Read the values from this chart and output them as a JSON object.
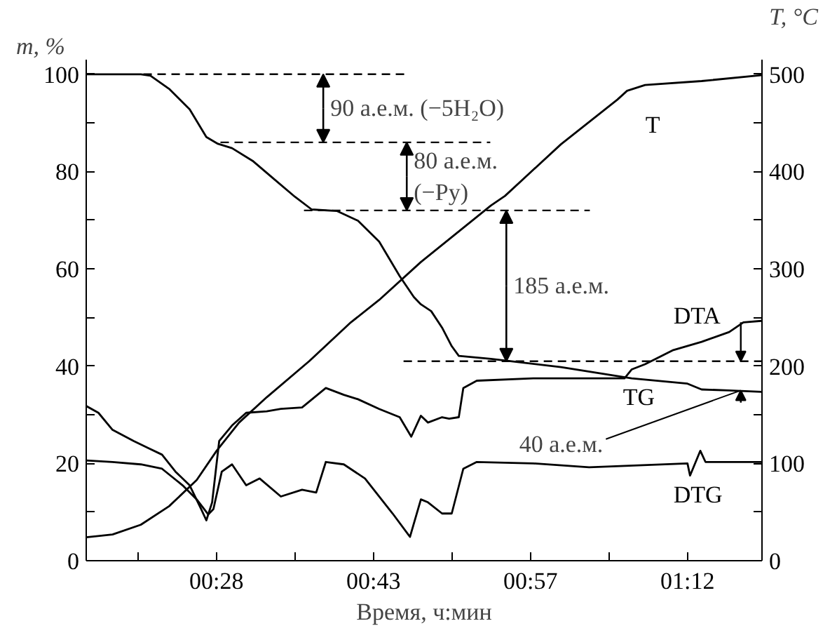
{
  "chart_data": {
    "type": "line",
    "ylabel": "m, %",
    "y2label": "T, °C",
    "xlabel": "Время, ч:мин",
    "xlim": [
      0.264,
      1.316
    ],
    "ylim": [
      0,
      103
    ],
    "y2lim": [
      0,
      515
    ],
    "xticks": [
      {
        "value": 0.3444,
        "label": null
      },
      {
        "value": 0.4667,
        "label": "00:28"
      },
      {
        "value": 0.5889,
        "label": null
      },
      {
        "value": 0.7111,
        "label": "00:43"
      },
      {
        "value": 0.8333,
        "label": null
      },
      {
        "value": 0.9556,
        "label": "00:57"
      },
      {
        "value": 1.0778,
        "label": null
      },
      {
        "value": 1.2,
        "label": "01:12"
      }
    ],
    "yticks": [
      0,
      {
        "value": 10,
        "label": null
      },
      20,
      {
        "value": 30,
        "label": null
      },
      40,
      {
        "value": 50,
        "label": null
      },
      60,
      {
        "value": 70,
        "label": null
      },
      80,
      {
        "value": 90,
        "label": null
      },
      100
    ],
    "y2ticks": [
      0,
      {
        "value": 50,
        "label": null
      },
      100,
      {
        "value": 150,
        "label": null
      },
      200,
      {
        "value": 250,
        "label": null
      },
      300,
      {
        "value": 350,
        "label": null
      },
      400,
      {
        "value": 450,
        "label": null
      },
      500
    ],
    "grid": false,
    "line_style": "solid",
    "series": [
      {
        "name": "TG",
        "color": "#000000",
        "x": [
          0.264,
          0.349,
          0.364,
          0.393,
          0.425,
          0.451,
          0.469,
          0.491,
          0.523,
          0.556,
          0.589,
          0.615,
          0.654,
          0.687,
          0.72,
          0.752,
          0.774,
          0.785,
          0.801,
          0.818,
          0.833,
          0.844,
          0.894,
          1.003,
          1.113,
          1.2,
          1.222,
          1.265,
          1.315
        ],
        "values": [
          100,
          100,
          99.7,
          97,
          92.8,
          87.1,
          85.7,
          84.8,
          82.2,
          78.5,
          74.8,
          72.2,
          71.9,
          69.9,
          65.6,
          58.5,
          54.2,
          52.7,
          51.3,
          47.9,
          44.1,
          42.1,
          41.5,
          39.8,
          37.5,
          36.4,
          35.2,
          35,
          34.7
        ]
      },
      {
        "name": "T",
        "color": "#000000",
        "axis": "y2",
        "x": [
          0.264,
          0.305,
          0.349,
          0.393,
          0.436,
          0.467,
          0.502,
          0.545,
          0.611,
          0.676,
          0.72,
          0.785,
          0.894,
          0.916,
          1.003,
          1.091,
          1.106,
          1.134,
          1.222,
          1.315
        ],
        "values": [
          24,
          27,
          37,
          56,
          83,
          113,
          142,
          168,
          205,
          245,
          268,
          307,
          365,
          375,
          428,
          474,
          483,
          489,
          493,
          499
        ]
      },
      {
        "name": "DTA",
        "color": "#000000",
        "x": [
          0.264,
          0.283,
          0.305,
          0.338,
          0.36,
          0.382,
          0.403,
          0.425,
          0.443,
          0.451,
          0.46,
          0.471,
          0.491,
          0.513,
          0.545,
          0.567,
          0.6,
          0.637,
          0.665,
          0.687,
          0.72,
          0.752,
          0.77,
          0.785,
          0.796,
          0.818,
          0.829,
          0.844,
          0.851,
          0.872,
          0.96,
          1.069,
          1.102,
          1.113,
          1.134,
          1.178,
          1.222,
          1.265,
          1.287,
          1.315
        ],
        "values": [
          31.8,
          30.4,
          26.9,
          24.6,
          23.2,
          21.8,
          18.3,
          15.5,
          10.6,
          8.3,
          12,
          24.6,
          27.8,
          30.4,
          30.7,
          31.2,
          31.5,
          35.5,
          34.1,
          33.2,
          31.2,
          29.5,
          25.5,
          29.8,
          28.4,
          29.5,
          29.2,
          29.5,
          35.5,
          37,
          37.5,
          37.5,
          37.5,
          39.3,
          40.4,
          43.3,
          45,
          47,
          49,
          49.3
        ]
      },
      {
        "name": "DTG",
        "color": "#000000",
        "x": [
          0.264,
          0.305,
          0.349,
          0.382,
          0.414,
          0.436,
          0.454,
          0.462,
          0.475,
          0.491,
          0.513,
          0.534,
          0.567,
          0.6,
          0.622,
          0.637,
          0.665,
          0.698,
          0.741,
          0.768,
          0.785,
          0.796,
          0.818,
          0.833,
          0.851,
          0.872,
          0.96,
          1.047,
          1.2,
          1.204,
          1.22,
          1.228,
          1.315
        ],
        "values": [
          20.6,
          20.3,
          19.8,
          18.9,
          15.5,
          12.6,
          9.5,
          10.6,
          18.3,
          19.8,
          15.5,
          16.9,
          13.2,
          14.6,
          14,
          20.3,
          19.8,
          16.9,
          9.7,
          4.9,
          12.6,
          12,
          9.7,
          9.7,
          18.9,
          20.3,
          20,
          19.2,
          20,
          17.5,
          22.6,
          20.3,
          20.3
        ]
      }
    ],
    "ref_lines": [
      {
        "axis": "y",
        "value": 100,
        "line_style": "dashed"
      },
      {
        "axis": "y",
        "value": 86,
        "line_style": "dashed"
      },
      {
        "axis": "y",
        "value": 72,
        "line_style": "dashed"
      },
      {
        "axis": "y",
        "value": 41,
        "line_style": "dashed"
      }
    ],
    "annotations": [
      {
        "text": "90 а.е.м. (−5H₂O)",
        "x": 0.633,
        "y": 86
      },
      {
        "text": "80 а.е.м.\n(−Py)",
        "x": 0.763,
        "y": 72
      },
      {
        "text": "185 а.е.м.",
        "x": 0.918,
        "y": 41
      },
      {
        "text": "40 а.е.м.",
        "x": 1.283,
        "y": 35
      }
    ]
  }
}
